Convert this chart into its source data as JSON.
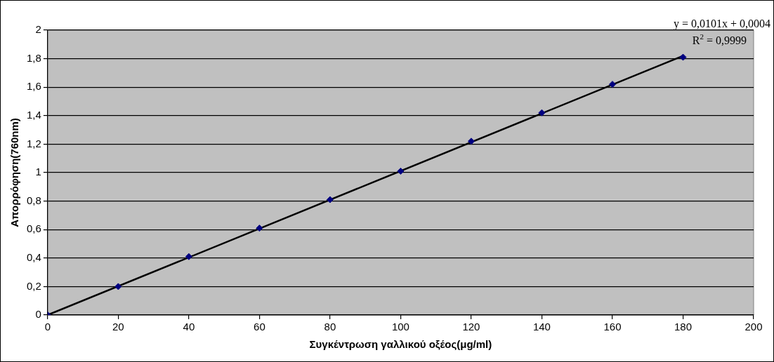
{
  "chart_data": {
    "type": "scatter",
    "xlabel": "Συγκέντρωση γαλλικού οξέος(μg/ml)",
    "ylabel": "Απορρόφηση(760nm)",
    "x": [
      0,
      20,
      40,
      60,
      80,
      100,
      120,
      140,
      160,
      180
    ],
    "series": [
      {
        "color": "#000080",
        "marker": "diamond",
        "values": [
          0,
          0.2,
          0.41,
          0.61,
          0.81,
          1.01,
          1.22,
          1.42,
          1.62,
          1.81
        ]
      },
      {
        "type": "line",
        "color": "#000000",
        "marker": "none",
        "x": [
          0,
          180
        ],
        "values": [
          0,
          1.82
        ]
      }
    ],
    "xlim": [
      0,
      200
    ],
    "xticks": [
      0,
      20,
      40,
      60,
      80,
      100,
      120,
      140,
      160,
      180,
      200
    ],
    "ylim": [
      0,
      2
    ],
    "yticks": [
      0,
      {
        "value": 0.2,
        "label": "0,2"
      },
      {
        "value": 0.4,
        "label": "0,4"
      },
      {
        "value": 0.6,
        "label": "0,6"
      },
      {
        "value": 0.8,
        "label": "0,8"
      },
      1,
      {
        "value": 1.2,
        "label": "1,2"
      },
      {
        "value": 1.4,
        "label": "1,4"
      },
      {
        "value": 1.6,
        "label": "1,6"
      },
      {
        "value": 1.8,
        "label": "1,8"
      },
      2
    ],
    "grid": "y",
    "legend": false,
    "annotations": [
      "y = 0,0101x + 0,0004",
      "R$^{2}$ = 0,9999"
    ]
  }
}
